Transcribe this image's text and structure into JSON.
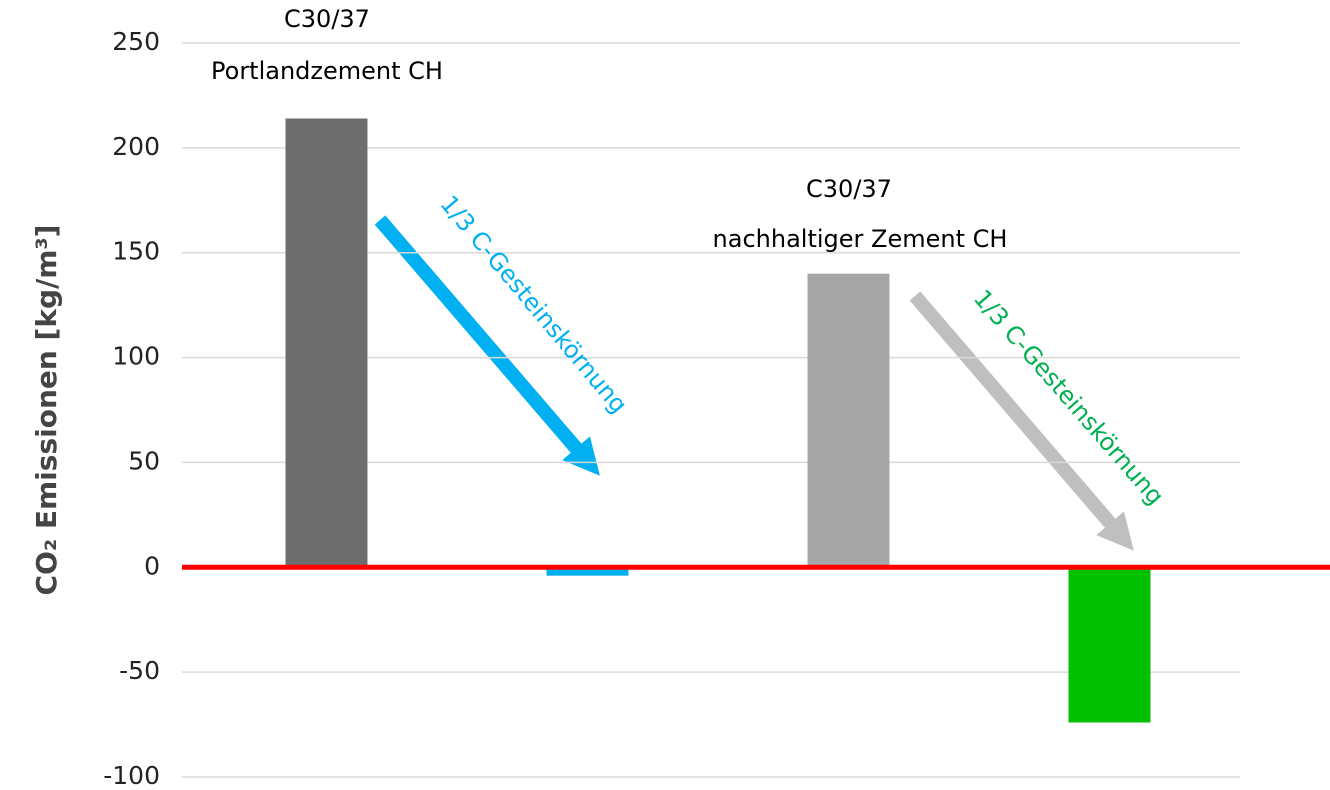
{
  "chart_data": {
    "type": "bar",
    "y_label": "CO₂ Emissionen [kg/m³]",
    "categories": [
      null,
      null,
      null,
      null
    ],
    "values": [
      214,
      -4,
      140,
      -74
    ],
    "colors": [
      "#6d6d6d",
      "#00b0f0",
      "#a6a6a6",
      "#00c000"
    ],
    "ylim": [
      -100,
      250
    ],
    "yticks": [
      -100,
      -50,
      0,
      50,
      100,
      150,
      200,
      250
    ],
    "grid": true,
    "zero_line_color": "#ff0000",
    "annotations": [
      {
        "lines": [
          "C30/37",
          "Portlandzement CH"
        ]
      },
      {
        "lines": [
          "C30/37",
          "nachhaltiger Zement CH"
        ]
      },
      {
        "text": "1/3 C-Gesteinskörnung",
        "color": "#00b0f0"
      },
      {
        "text": "1/3 C-Gesteinskörnung",
        "color": "#00b050"
      }
    ]
  }
}
